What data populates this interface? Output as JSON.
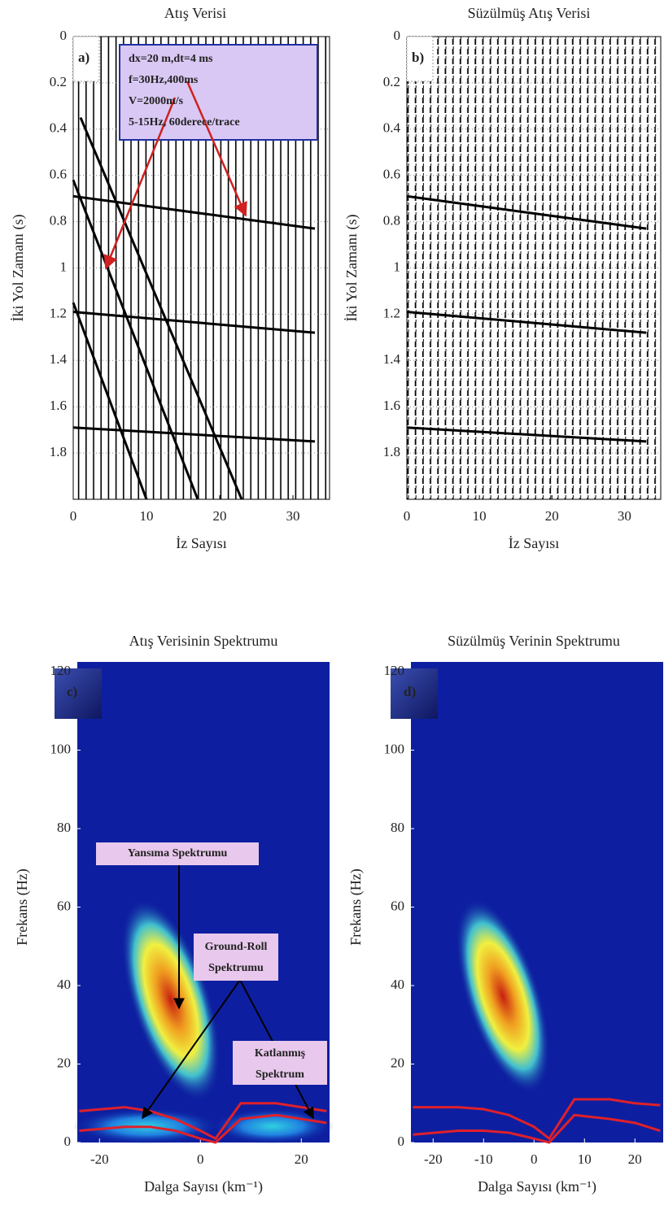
{
  "chart_data": [
    {
      "type": "wiggle",
      "title": "Atış Verisi",
      "panel_label": "a)",
      "xlabel": "İz Sayısı",
      "ylabel": "İki Yol Zamanı (s)",
      "xlim": [
        0,
        35
      ],
      "ylim": [
        0,
        2.0
      ],
      "xticks": [
        0,
        10,
        20,
        30
      ],
      "yticks": [
        0,
        0.2,
        0.4,
        0.6,
        0.8,
        1,
        1.2,
        1.4,
        1.6,
        1.8
      ],
      "grid": true,
      "events": [
        {
          "x": [
            0,
            33
          ],
          "y": [
            0.69,
            0.83
          ]
        },
        {
          "x": [
            0,
            33
          ],
          "y": [
            1.19,
            1.28
          ]
        },
        {
          "x": [
            0,
            33
          ],
          "y": [
            1.69,
            1.75
          ]
        },
        {
          "x": [
            1,
            23
          ],
          "y": [
            0.35,
            2.0
          ]
        },
        {
          "x": [
            0,
            17
          ],
          "y": [
            0.62,
            2.0
          ]
        },
        {
          "x": [
            0,
            10
          ],
          "y": [
            1.15,
            2.0
          ]
        }
      ],
      "annotations": [
        {
          "lines": [
            "dx=20 m,dt=4 ms",
            "f=30Hz,400ms",
            "V=2000m/s",
            "5-15Hz, 60derece/trace"
          ]
        }
      ]
    },
    {
      "type": "wiggle",
      "title": "Süzülmüş Atış Verisi",
      "panel_label": "b)",
      "xlabel": "İz Sayısı",
      "ylabel": "İki Yol Zamanı (s)",
      "xlim": [
        0,
        35
      ],
      "ylim": [
        0,
        2.0
      ],
      "xticks": [
        0,
        10,
        20,
        30
      ],
      "yticks": [
        0,
        0.2,
        0.4,
        0.6,
        0.8,
        1,
        1.2,
        1.4,
        1.6,
        1.8
      ],
      "grid": true,
      "events": [
        {
          "x": [
            0,
            33
          ],
          "y": [
            0.69,
            0.83
          ]
        },
        {
          "x": [
            0,
            33
          ],
          "y": [
            1.19,
            1.28
          ]
        },
        {
          "x": [
            0,
            33
          ],
          "y": [
            1.69,
            1.75
          ]
        }
      ],
      "annotations": []
    },
    {
      "type": "spectrum",
      "title": "Atış Verisinin Spektrumu",
      "panel_label": "c)",
      "xlabel": "Dalga Sayısı (km⁻¹)",
      "ylabel": "Frekans (Hz)",
      "xlim": [
        -24.4,
        25.6
      ],
      "ylim": [
        0,
        120
      ],
      "xticks": [
        -20,
        0,
        20
      ],
      "yticks": [
        0,
        20,
        40,
        60,
        80,
        100,
        120
      ],
      "curves": [
        {
          "color": "#e0202a",
          "x": [
            -24,
            -15,
            -10,
            -5,
            0,
            3,
            8,
            15,
            20,
            25
          ],
          "y": [
            8,
            9,
            8,
            6,
            3,
            1,
            10,
            10,
            9,
            8
          ]
        },
        {
          "color": "#e0202a",
          "x": [
            -24,
            -15,
            -10,
            -5,
            0,
            3,
            8,
            15,
            20,
            25
          ],
          "y": [
            3,
            4,
            4,
            3,
            1,
            0,
            6,
            7,
            6,
            5
          ]
        }
      ],
      "annotations": [
        {
          "lines": [
            "Yansıma Spektrumu"
          ]
        },
        {
          "lines": [
            "Ground-Roll",
            "Spektrumu"
          ]
        },
        {
          "lines": [
            "Katlanmış",
            "Spektrum"
          ]
        }
      ]
    },
    {
      "type": "spectrum",
      "title": "Süzülmüş Verinin Spektrumu",
      "panel_label": "d)",
      "xlabel": "Dalga Sayısı (km⁻¹)",
      "ylabel": "Frekans (Hz)",
      "xlim": [
        -24.4,
        25.6
      ],
      "ylim": [
        0,
        120
      ],
      "xticks": [
        -20,
        -10,
        0,
        10,
        20
      ],
      "yticks": [
        0,
        20,
        40,
        60,
        80,
        100,
        120
      ],
      "curves": [
        {
          "color": "#e0202a",
          "x": [
            -24,
            -15,
            -10,
            -5,
            0,
            3,
            8,
            15,
            20,
            25
          ],
          "y": [
            9,
            9,
            8.5,
            7,
            4,
            1,
            11,
            11,
            10,
            9.5
          ]
        },
        {
          "color": "#e0202a",
          "x": [
            -24,
            -15,
            -10,
            -5,
            0,
            3,
            8,
            15,
            20,
            25
          ],
          "y": [
            2,
            3,
            3,
            2.5,
            1,
            0,
            7,
            6,
            5,
            3
          ]
        }
      ],
      "annotations": []
    }
  ]
}
